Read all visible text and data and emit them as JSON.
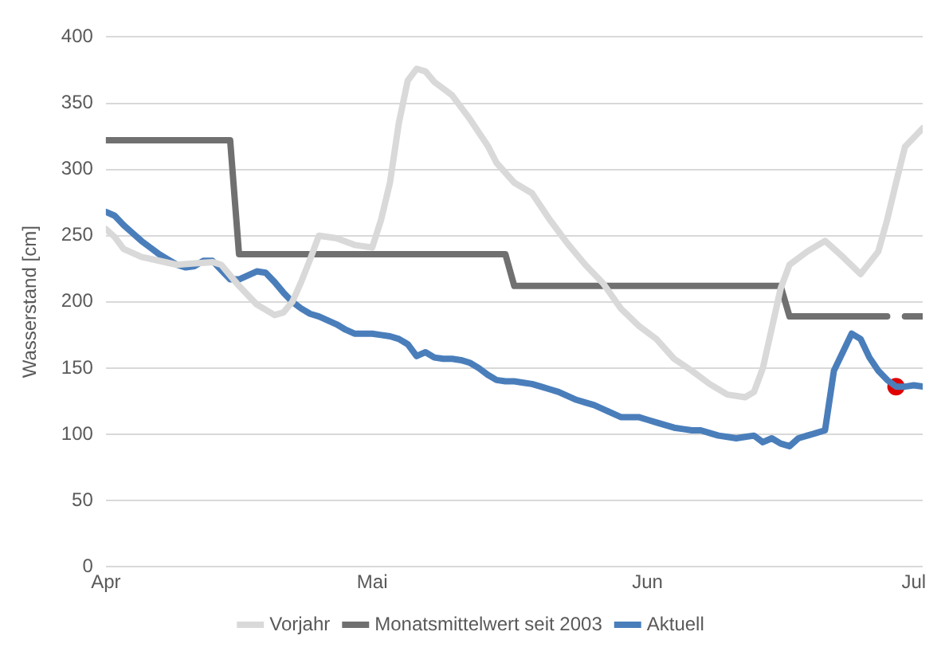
{
  "chart_data": {
    "type": "line",
    "ylabel": "Wasserstand [cm]",
    "xlim": [
      "--04-01",
      "--07-02"
    ],
    "xticks": [
      {
        "value": "--04-01",
        "label": "Apr"
      },
      {
        "value": "--05-01",
        "label": "Mai"
      },
      {
        "value": "--06-01",
        "label": "Jun"
      },
      {
        "value": "--07-01",
        "label": "Jul"
      }
    ],
    "ylim": [
      0,
      400
    ],
    "yticks": [
      0,
      50,
      100,
      150,
      200,
      250,
      300,
      350,
      400
    ],
    "grid": "y",
    "legend": "bottom",
    "series": [
      {
        "name": "Vorjahr",
        "color": "#d9d9d9",
        "x": [
          "--04-01",
          "--04-02",
          "--04-03",
          "--04-05",
          "--04-07",
          "--04-09",
          "--04-11",
          "--04-13",
          "--04-14",
          "--04-15",
          "--04-16",
          "--04-18",
          "--04-20",
          "--04-21",
          "--04-22",
          "--04-23",
          "--04-24",
          "--04-25",
          "--04-27",
          "--04-29",
          "--05-01",
          "--05-02",
          "--05-03",
          "--05-04",
          "--05-05",
          "--05-06",
          "--05-07",
          "--05-08",
          "--05-10",
          "--05-12",
          "--05-14",
          "--05-15",
          "--05-17",
          "--05-19",
          "--05-21",
          "--05-23",
          "--05-25",
          "--05-27",
          "--05-29",
          "--05-31",
          "--06-02",
          "--06-04",
          "--06-06",
          "--06-08",
          "--06-10",
          "--06-12",
          "--06-13",
          "--06-14",
          "--06-15",
          "--06-16",
          "--06-17",
          "--06-19",
          "--06-21",
          "--06-23",
          "--06-25",
          "--06-27",
          "--06-28",
          "--06-29",
          "--06-30",
          "--07-02"
        ],
        "values": [
          255,
          249,
          240,
          234,
          231,
          228,
          229,
          230,
          228,
          220,
          212,
          198,
          190,
          192,
          200,
          215,
          232,
          250,
          248,
          243,
          241,
          262,
          290,
          335,
          367,
          376,
          374,
          366,
          356,
          338,
          318,
          305,
          290,
          282,
          262,
          244,
          228,
          214,
          195,
          182,
          172,
          157,
          148,
          138,
          130,
          128,
          132,
          150,
          180,
          210,
          228,
          238,
          246,
          234,
          221,
          238,
          262,
          290,
          317,
          331
        ]
      },
      {
        "name": "Monatsmittelwert seit 2003",
        "color": "#707070",
        "x": [
          "--04-01",
          "--04-15",
          "--04-16",
          "--05-16",
          "--05-17",
          "--06-16",
          "--06-17",
          "--06-28",
          "--06-29",
          "--06-30",
          "--07-02"
        ],
        "values": [
          322,
          322,
          236,
          236,
          212,
          212,
          189,
          189,
          null,
          189,
          189
        ]
      },
      {
        "name": "Aktuell",
        "color": "#4a7ebb",
        "x": [
          "--04-01",
          "--04-02",
          "--04-03",
          "--04-04",
          "--04-05",
          "--04-06",
          "--04-07",
          "--04-08",
          "--04-09",
          "--04-10",
          "--04-11",
          "--04-12",
          "--04-13",
          "--04-14",
          "--04-15",
          "--04-16",
          "--04-17",
          "--04-18",
          "--04-19",
          "--04-20",
          "--04-21",
          "--04-22",
          "--04-23",
          "--04-24",
          "--04-25",
          "--04-26",
          "--04-27",
          "--04-28",
          "--04-29",
          "--04-30",
          "--05-01",
          "--05-02",
          "--05-03",
          "--05-04",
          "--05-05",
          "--05-06",
          "--05-07",
          "--05-08",
          "--05-09",
          "--05-10",
          "--05-11",
          "--05-12",
          "--05-13",
          "--05-14",
          "--05-15",
          "--05-16",
          "--05-17",
          "--05-18",
          "--05-19",
          "--05-20",
          "--05-21",
          "--05-22",
          "--05-23",
          "--05-24",
          "--05-25",
          "--05-26",
          "--05-27",
          "--05-28",
          "--05-29",
          "--05-30",
          "--05-31",
          "--06-01",
          "--06-02",
          "--06-03",
          "--06-04",
          "--06-05",
          "--06-06",
          "--06-07",
          "--06-08",
          "--06-09",
          "--06-10",
          "--06-11",
          "--06-12",
          "--06-13",
          "--06-14",
          "--06-15",
          "--06-16",
          "--06-17",
          "--06-18",
          "--06-19",
          "--06-20",
          "--06-21",
          "--06-22",
          "--06-23",
          "--06-24",
          "--06-25",
          "--06-26",
          "--06-27",
          "--06-28",
          "--06-29",
          "--06-30",
          "--07-01",
          "--07-02"
        ],
        "values": [
          268,
          265,
          258,
          252,
          246,
          241,
          236,
          232,
          228,
          226,
          227,
          231,
          231,
          224,
          217,
          217,
          220,
          223,
          222,
          215,
          207,
          200,
          195,
          191,
          189,
          186,
          183,
          179,
          176,
          176,
          176,
          175,
          174,
          172,
          168,
          159,
          162,
          158,
          157,
          157,
          156,
          154,
          150,
          145,
          141,
          140,
          140,
          139,
          138,
          136,
          134,
          132,
          129,
          126,
          124,
          122,
          119,
          116,
          113,
          113,
          113,
          111,
          109,
          107,
          105,
          104,
          103,
          103,
          101,
          99,
          98,
          97,
          98,
          99,
          94,
          97,
          93,
          91,
          97,
          99,
          101,
          103,
          148,
          162,
          176,
          172,
          158,
          148,
          141,
          136,
          136,
          137,
          136
        ]
      },
      {
        "type": "scatter",
        "color": "#e00000",
        "x": [
          "--06-29"
        ],
        "values": [
          136
        ]
      }
    ]
  }
}
